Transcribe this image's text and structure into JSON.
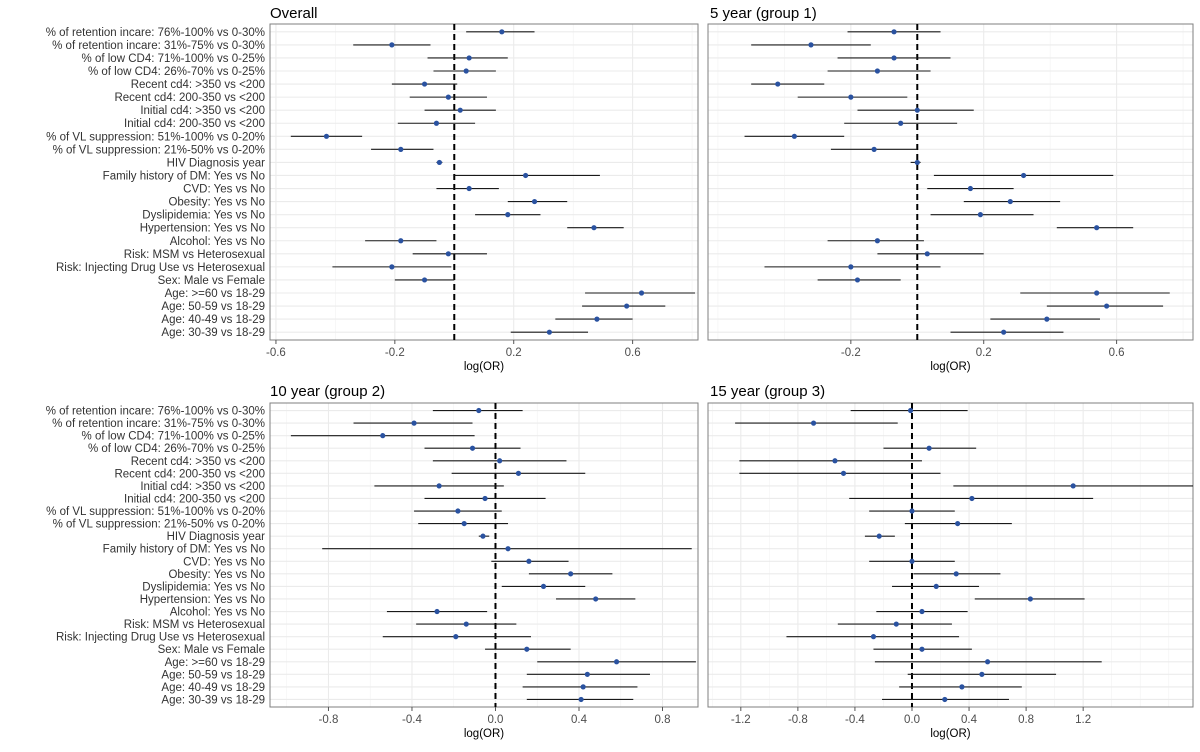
{
  "chart_data": [
    {
      "type": "forest",
      "title": "Overall",
      "xlabel": "log(OR)",
      "xlim": [
        -0.62,
        0.82
      ],
      "xticks": [
        -0.6,
        -0.2,
        0.2,
        0.6
      ],
      "xtick_labels": [
        "-0.6",
        "-0.2",
        "0.2",
        "0.6"
      ],
      "reference_line": 0,
      "rows": [
        {
          "label": "% of retention incare: 76%-100% vs 0-30%",
          "estimate": 0.16,
          "lower": 0.04,
          "upper": 0.27
        },
        {
          "label": "% of retention incare: 31%-75%  vs 0-30%",
          "estimate": -0.21,
          "lower": -0.34,
          "upper": -0.08
        },
        {
          "label": "% of low CD4: 71%-100% vs 0-25%",
          "estimate": 0.05,
          "lower": -0.09,
          "upper": 0.18
        },
        {
          "label": "% of low CD4: 26%-70% vs 0-25%",
          "estimate": 0.04,
          "lower": -0.07,
          "upper": 0.14
        },
        {
          "label": "Recent cd4: >350 vs <200",
          "estimate": -0.1,
          "lower": -0.21,
          "upper": 0.01
        },
        {
          "label": "Recent cd4: 200-350 vs <200",
          "estimate": -0.02,
          "lower": -0.15,
          "upper": 0.11
        },
        {
          "label": "Initial cd4: >350  vs <200",
          "estimate": 0.02,
          "lower": -0.1,
          "upper": 0.14
        },
        {
          "label": "Initial cd4: 200-350 vs <200",
          "estimate": -0.06,
          "lower": -0.19,
          "upper": 0.07
        },
        {
          "label": "% of VL suppression: 51%-100% vs 0-20%",
          "estimate": -0.43,
          "lower": -0.55,
          "upper": -0.31
        },
        {
          "label": "% of VL suppression: 21%-50% vs 0-20%",
          "estimate": -0.18,
          "lower": -0.28,
          "upper": -0.07
        },
        {
          "label": "HIV Diagnosis year",
          "estimate": -0.05,
          "lower": -0.06,
          "upper": -0.04
        },
        {
          "label": "Family history of DM: Yes vs No",
          "estimate": 0.24,
          "lower": 0.0,
          "upper": 0.49
        },
        {
          "label": "CVD: Yes vs No",
          "estimate": 0.05,
          "lower": -0.06,
          "upper": 0.15
        },
        {
          "label": "Obesity: Yes vs No",
          "estimate": 0.27,
          "lower": 0.18,
          "upper": 0.38
        },
        {
          "label": "Dyslipidemia: Yes vs No",
          "estimate": 0.18,
          "lower": 0.07,
          "upper": 0.29
        },
        {
          "label": "Hypertension: Yes vs No",
          "estimate": 0.47,
          "lower": 0.38,
          "upper": 0.57
        },
        {
          "label": "Alcohol: Yes vs No",
          "estimate": -0.18,
          "lower": -0.3,
          "upper": -0.06
        },
        {
          "label": "Risk: MSM vs Heterosexual",
          "estimate": -0.02,
          "lower": -0.14,
          "upper": 0.11
        },
        {
          "label": "Risk: Injecting Drug Use vs Heterosexual",
          "estimate": -0.21,
          "lower": -0.41,
          "upper": -0.01
        },
        {
          "label": "Sex: Male vs Female",
          "estimate": -0.1,
          "lower": -0.2,
          "upper": 0.0
        },
        {
          "label": "Age: >=60  vs 18-29",
          "estimate": 0.63,
          "lower": 0.44,
          "upper": 0.81
        },
        {
          "label": "Age: 50-59 vs 18-29",
          "estimate": 0.58,
          "lower": 0.43,
          "upper": 0.71
        },
        {
          "label": "Age: 40-49 vs 18-29",
          "estimate": 0.48,
          "lower": 0.34,
          "upper": 0.6
        },
        {
          "label": "Age: 30-39 vs 18-29",
          "estimate": 0.32,
          "lower": 0.19,
          "upper": 0.45
        }
      ]
    },
    {
      "type": "forest",
      "title": "5 year (group 1)",
      "xlabel": "log(OR)",
      "xlim": [
        -0.63,
        0.83
      ],
      "xticks": [
        -0.2,
        0.2,
        0.6
      ],
      "xtick_labels": [
        "-0.2",
        "0.2",
        "0.6"
      ],
      "reference_line": 0,
      "rows": [
        {
          "label": "% of retention incare: 76%-100% vs 0-30%",
          "estimate": -0.07,
          "lower": -0.21,
          "upper": 0.07
        },
        {
          "label": "% of retention incare: 31%-75%  vs 0-30%",
          "estimate": -0.32,
          "lower": -0.5,
          "upper": -0.14
        },
        {
          "label": "% of low CD4: 71%-100% vs 0-25%",
          "estimate": -0.07,
          "lower": -0.24,
          "upper": 0.1
        },
        {
          "label": "% of low CD4: 26%-70% vs 0-25%",
          "estimate": -0.12,
          "lower": -0.27,
          "upper": 0.04
        },
        {
          "label": "Recent cd4: >350 vs <200",
          "estimate": -0.42,
          "lower": -0.5,
          "upper": -0.28
        },
        {
          "label": "Recent cd4: 200-350 vs <200",
          "estimate": -0.2,
          "lower": -0.36,
          "upper": -0.03
        },
        {
          "label": "Initial cd4: >350  vs <200",
          "estimate": 0.0,
          "lower": -0.18,
          "upper": 0.17
        },
        {
          "label": "Initial cd4: 200-350 vs <200",
          "estimate": -0.05,
          "lower": -0.22,
          "upper": 0.12
        },
        {
          "label": "% of VL suppression: 51%-100% vs 0-20%",
          "estimate": -0.37,
          "lower": -0.52,
          "upper": -0.22
        },
        {
          "label": "% of VL suppression: 21%-50% vs 0-20%",
          "estimate": -0.13,
          "lower": -0.26,
          "upper": 0.0
        },
        {
          "label": "HIV Diagnosis year",
          "estimate": 0.0,
          "lower": -0.02,
          "upper": 0.01
        },
        {
          "label": "Family history of DM: Yes vs No",
          "estimate": 0.32,
          "lower": 0.05,
          "upper": 0.59
        },
        {
          "label": "CVD: Yes vs No",
          "estimate": 0.16,
          "lower": 0.03,
          "upper": 0.29
        },
        {
          "label": "Obesity: Yes vs No",
          "estimate": 0.28,
          "lower": 0.14,
          "upper": 0.43
        },
        {
          "label": "Dyslipidemia: Yes vs No",
          "estimate": 0.19,
          "lower": 0.04,
          "upper": 0.35
        },
        {
          "label": "Hypertension: Yes vs No",
          "estimate": 0.54,
          "lower": 0.42,
          "upper": 0.65
        },
        {
          "label": "Alcohol: Yes vs No",
          "estimate": -0.12,
          "lower": -0.27,
          "upper": 0.02
        },
        {
          "label": "Risk: MSM vs Heterosexual",
          "estimate": 0.03,
          "lower": -0.12,
          "upper": 0.2
        },
        {
          "label": "Risk: Injecting Drug Use vs Heterosexual",
          "estimate": -0.2,
          "lower": -0.46,
          "upper": 0.07
        },
        {
          "label": "Sex: Male vs Female",
          "estimate": -0.18,
          "lower": -0.3,
          "upper": -0.05
        },
        {
          "label": "Age: >=60  vs 18-29",
          "estimate": 0.54,
          "lower": 0.31,
          "upper": 0.76
        },
        {
          "label": "Age: 50-59 vs 18-29",
          "estimate": 0.57,
          "lower": 0.39,
          "upper": 0.74
        },
        {
          "label": "Age: 40-49 vs 18-29",
          "estimate": 0.39,
          "lower": 0.22,
          "upper": 0.55
        },
        {
          "label": "Age: 30-39 vs 18-29",
          "estimate": 0.26,
          "lower": 0.1,
          "upper": 0.44
        }
      ]
    },
    {
      "type": "forest",
      "title": "10 year (group 2)",
      "xlabel": "log(OR)",
      "xlim": [
        -1.08,
        0.97
      ],
      "xticks": [
        -0.8,
        -0.4,
        0.0,
        0.4,
        0.8
      ],
      "xtick_labels": [
        "-0.8",
        "-0.4",
        "0.0",
        "0.4",
        "0.8"
      ],
      "reference_line": 0,
      "rows": [
        {
          "label": "% of retention incare: 76%-100% vs 0-30%",
          "estimate": -0.08,
          "lower": -0.3,
          "upper": 0.13
        },
        {
          "label": "% of retention incare: 31%-75%  vs 0-30%",
          "estimate": -0.39,
          "lower": -0.68,
          "upper": -0.11
        },
        {
          "label": "% of low CD4: 71%-100% vs 0-25%",
          "estimate": -0.54,
          "lower": -0.98,
          "upper": -0.1
        },
        {
          "label": "% of low CD4: 26%-70% vs 0-25%",
          "estimate": -0.11,
          "lower": -0.34,
          "upper": 0.12
        },
        {
          "label": "Recent cd4: >350 vs <200",
          "estimate": 0.02,
          "lower": -0.3,
          "upper": 0.34
        },
        {
          "label": "Recent cd4: 200-350 vs <200",
          "estimate": 0.11,
          "lower": -0.21,
          "upper": 0.43
        },
        {
          "label": "Initial cd4: >350  vs <200",
          "estimate": -0.27,
          "lower": -0.58,
          "upper": 0.04
        },
        {
          "label": "Initial cd4: 200-350 vs <200",
          "estimate": -0.05,
          "lower": -0.34,
          "upper": 0.24
        },
        {
          "label": "% of VL suppression: 51%-100% vs 0-20%",
          "estimate": -0.18,
          "lower": -0.39,
          "upper": 0.03
        },
        {
          "label": "% of VL suppression: 21%-50% vs 0-20%",
          "estimate": -0.15,
          "lower": -0.37,
          "upper": 0.06
        },
        {
          "label": "HIV Diagnosis year",
          "estimate": -0.06,
          "lower": -0.08,
          "upper": -0.03
        },
        {
          "label": "Family history of DM: Yes vs No",
          "estimate": 0.06,
          "lower": -0.83,
          "upper": 0.94
        },
        {
          "label": "CVD: Yes vs No",
          "estimate": 0.16,
          "lower": -0.02,
          "upper": 0.35
        },
        {
          "label": "Obesity: Yes vs No",
          "estimate": 0.36,
          "lower": 0.16,
          "upper": 0.56
        },
        {
          "label": "Dyslipidemia: Yes vs No",
          "estimate": 0.23,
          "lower": 0.03,
          "upper": 0.43
        },
        {
          "label": "Hypertension: Yes vs No",
          "estimate": 0.48,
          "lower": 0.29,
          "upper": 0.67
        },
        {
          "label": "Alcohol: Yes vs No",
          "estimate": -0.28,
          "lower": -0.52,
          "upper": -0.04
        },
        {
          "label": "Risk: MSM vs Heterosexual",
          "estimate": -0.14,
          "lower": -0.38,
          "upper": 0.1
        },
        {
          "label": "Risk: Injecting Drug Use vs Heterosexual",
          "estimate": -0.19,
          "lower": -0.54,
          "upper": 0.17
        },
        {
          "label": "Sex: Male vs Female",
          "estimate": 0.15,
          "lower": -0.05,
          "upper": 0.36
        },
        {
          "label": "Age: >=60  vs 18-29",
          "estimate": 0.58,
          "lower": 0.2,
          "upper": 0.96
        },
        {
          "label": "Age: 50-59 vs 18-29",
          "estimate": 0.44,
          "lower": 0.15,
          "upper": 0.74
        },
        {
          "label": "Age: 40-49 vs 18-29",
          "estimate": 0.42,
          "lower": 0.13,
          "upper": 0.68
        },
        {
          "label": "Age: 30-39 vs 18-29",
          "estimate": 0.41,
          "lower": 0.15,
          "upper": 0.66
        }
      ]
    },
    {
      "type": "forest",
      "title": "15 year (group 3)",
      "xlabel": "log(OR)",
      "xlim": [
        -1.43,
        1.97
      ],
      "xticks": [
        -1.2,
        -0.8,
        -0.4,
        0.0,
        0.4,
        0.8,
        1.2
      ],
      "xtick_labels": [
        "-1.2",
        "-0.8",
        "-0.4",
        "0.0",
        "0.4",
        "0.8",
        "1.2"
      ],
      "reference_line": 0,
      "rows": [
        {
          "label": "% of retention incare: 76%-100% vs 0-30%",
          "estimate": -0.01,
          "lower": -0.43,
          "upper": 0.39
        },
        {
          "label": "% of retention incare: 31%-75%  vs 0-30%",
          "estimate": -0.69,
          "lower": -1.24,
          "upper": -0.1
        },
        {
          "label": "% of low CD4: 71%-100% vs 0-25%",
          "estimate": null,
          "lower": null,
          "upper": null
        },
        {
          "label": "% of low CD4: 26%-70% vs 0-25%",
          "estimate": 0.12,
          "lower": -0.2,
          "upper": 0.45
        },
        {
          "label": "Recent cd4: >350 vs <200",
          "estimate": -0.54,
          "lower": -1.21,
          "upper": 0.07
        },
        {
          "label": "Recent cd4: 200-350 vs <200",
          "estimate": -0.48,
          "lower": -1.21,
          "upper": 0.2
        },
        {
          "label": "Initial cd4: >350  vs <200",
          "estimate": 1.13,
          "lower": 0.29,
          "upper": 1.97
        },
        {
          "label": "Initial cd4: 200-350 vs <200",
          "estimate": 0.42,
          "lower": -0.44,
          "upper": 1.27
        },
        {
          "label": "% of VL suppression: 51%-100% vs 0-20%",
          "estimate": 0.0,
          "lower": -0.3,
          "upper": 0.3
        },
        {
          "label": "% of VL suppression: 21%-50% vs 0-20%",
          "estimate": 0.32,
          "lower": -0.05,
          "upper": 0.7
        },
        {
          "label": "HIV Diagnosis year",
          "estimate": -0.23,
          "lower": -0.33,
          "upper": -0.12
        },
        {
          "label": "Family history of DM: Yes vs No",
          "estimate": null,
          "lower": null,
          "upper": null
        },
        {
          "label": "CVD: Yes vs No",
          "estimate": 0.0,
          "lower": -0.3,
          "upper": 0.3
        },
        {
          "label": "Obesity: Yes vs No",
          "estimate": 0.31,
          "lower": 0.01,
          "upper": 0.62
        },
        {
          "label": "Dyslipidemia: Yes vs No",
          "estimate": 0.17,
          "lower": -0.14,
          "upper": 0.47
        },
        {
          "label": "Hypertension: Yes vs No",
          "estimate": 0.83,
          "lower": 0.44,
          "upper": 1.21
        },
        {
          "label": "Alcohol: Yes vs No",
          "estimate": 0.07,
          "lower": -0.25,
          "upper": 0.39
        },
        {
          "label": "Risk: MSM vs Heterosexual",
          "estimate": -0.11,
          "lower": -0.52,
          "upper": 0.28
        },
        {
          "label": "Risk: Injecting Drug Use vs Heterosexual",
          "estimate": -0.27,
          "lower": -0.88,
          "upper": 0.33
        },
        {
          "label": "Sex: Male vs Female",
          "estimate": 0.07,
          "lower": -0.27,
          "upper": 0.42
        },
        {
          "label": "Age: >=60  vs 18-29",
          "estimate": 0.53,
          "lower": -0.26,
          "upper": 1.33
        },
        {
          "label": "Age: 50-59 vs 18-29",
          "estimate": 0.49,
          "lower": -0.03,
          "upper": 1.01
        },
        {
          "label": "Age: 40-49 vs 18-29",
          "estimate": 0.35,
          "lower": -0.09,
          "upper": 0.77
        },
        {
          "label": "Age: 30-39 vs 18-29",
          "estimate": 0.23,
          "lower": -0.21,
          "upper": 0.68
        }
      ]
    }
  ]
}
